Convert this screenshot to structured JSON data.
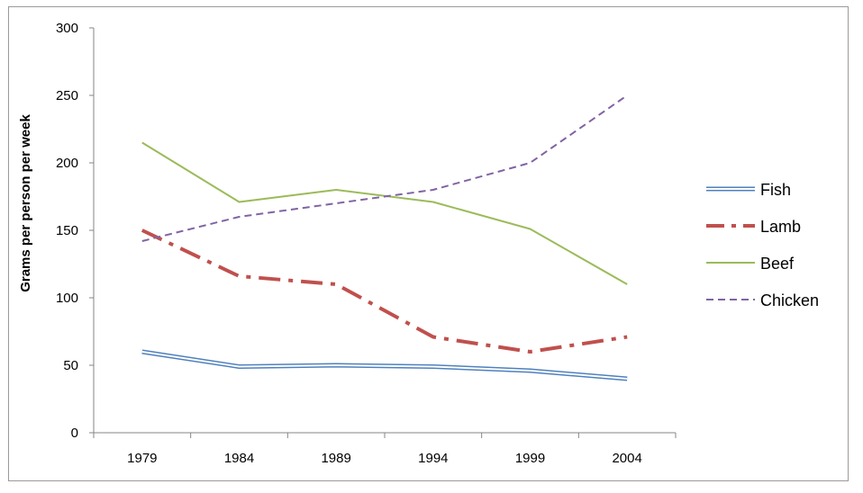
{
  "chart_data": {
    "type": "line",
    "title": "",
    "xlabel": "",
    "ylabel": "Grams per person per week",
    "categories": [
      "1979",
      "1984",
      "1989",
      "1994",
      "1999",
      "2004"
    ],
    "ylim": [
      0,
      300
    ],
    "yticks": [
      "0",
      "50",
      "100",
      "150",
      "200",
      "250",
      "300"
    ],
    "grid": false,
    "legend_position": "right",
    "series": [
      {
        "name": "Fish",
        "values": [
          60,
          49,
          50,
          49,
          46,
          40
        ],
        "color": "#4f81bd",
        "style": "double"
      },
      {
        "name": "Lamb",
        "values": [
          150,
          116,
          110,
          71,
          60,
          71
        ],
        "color": "#c0504d",
        "style": "dash-dot"
      },
      {
        "name": "Beef",
        "values": [
          215,
          171,
          180,
          171,
          151,
          110
        ],
        "color": "#9bbb59",
        "style": "solid"
      },
      {
        "name": "Chicken",
        "values": [
          142,
          160,
          170,
          180,
          200,
          250
        ],
        "color": "#8064a2",
        "style": "dashed"
      }
    ]
  }
}
